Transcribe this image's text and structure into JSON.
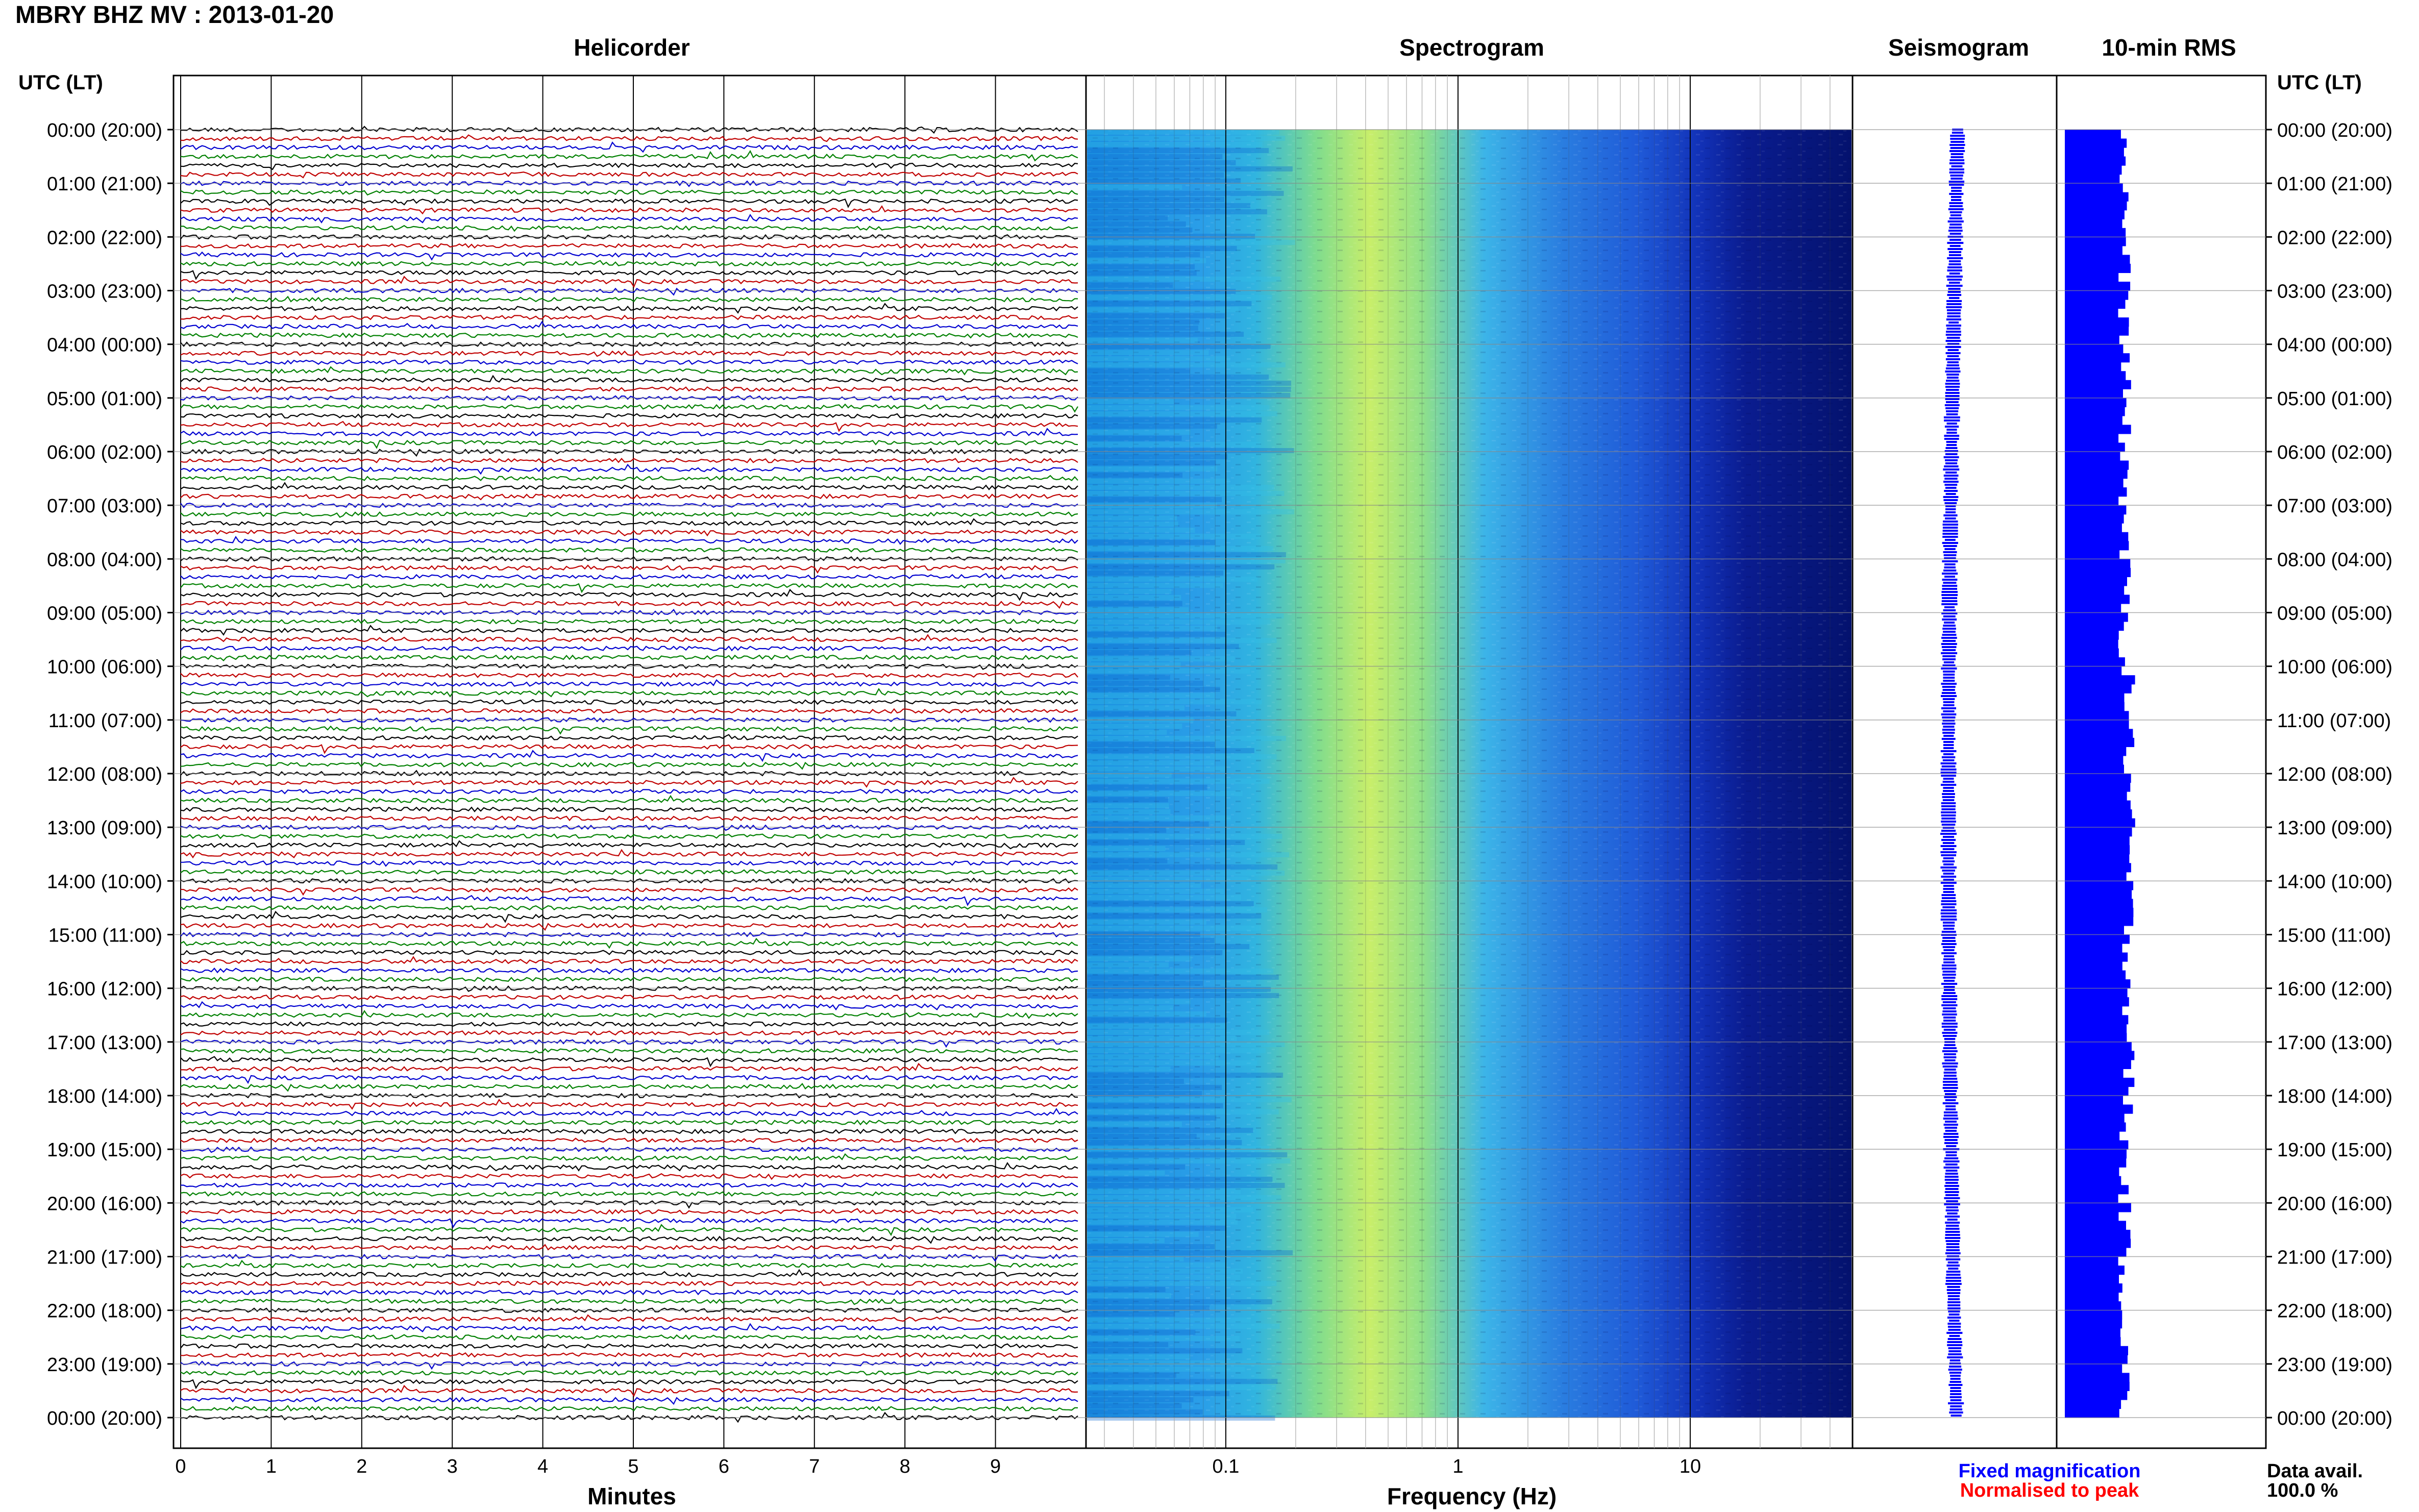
{
  "header": {
    "title": "MBRY BHZ MV : 2013-01-20",
    "utc_left": "UTC (LT)",
    "utc_right": "UTC (LT)"
  },
  "panels": {
    "helicorder": "Helicorder",
    "spectrogram": "Spectrogram",
    "seismogram": "Seismogram",
    "rms": "10-min RMS"
  },
  "legend": {
    "fixed": "Fixed magnification",
    "normalised": "Normalised to peak",
    "data_avail_label": "Data avail.",
    "data_avail_value": "100.0 %"
  },
  "colors": {
    "fixed": "#0000ff",
    "normalised": "#ff0000",
    "trace_cycle": [
      "#000000",
      "#c00000",
      "#0000d0",
      "#008000"
    ]
  },
  "chart_data": [
    {
      "type": "line",
      "title": "Helicorder",
      "xlabel": "Minutes",
      "x_ticks": [
        0,
        1,
        2,
        3,
        4,
        5,
        6,
        7,
        8,
        9
      ],
      "xlim": [
        0,
        10
      ],
      "hour_labels": [
        "00:00 (20:00)",
        "01:00 (21:00)",
        "02:00 (22:00)",
        "03:00 (23:00)",
        "04:00 (00:00)",
        "05:00 (01:00)",
        "06:00 (02:00)",
        "07:00 (03:00)",
        "08:00 (04:00)",
        "09:00 (05:00)",
        "10:00 (06:00)",
        "11:00 (07:00)",
        "12:00 (08:00)",
        "13:00 (09:00)",
        "14:00 (10:00)",
        "15:00 (11:00)",
        "16:00 (12:00)",
        "17:00 (13:00)",
        "18:00 (14:00)",
        "19:00 (15:00)",
        "20:00 (16:00)",
        "21:00 (17:00)",
        "22:00 (18:00)",
        "23:00 (19:00)",
        "00:00 (20:00)"
      ],
      "traces_per_hour": 6
    },
    {
      "type": "heatmap",
      "title": "Spectrogram",
      "xlabel": "Frequency (Hz)",
      "x_scale": "log",
      "x_ticks": [
        0.1,
        1,
        10
      ],
      "xlim": [
        0.025,
        50
      ]
    },
    {
      "type": "line",
      "title": "Seismogram"
    },
    {
      "type": "bar",
      "title": "10-min RMS"
    }
  ]
}
